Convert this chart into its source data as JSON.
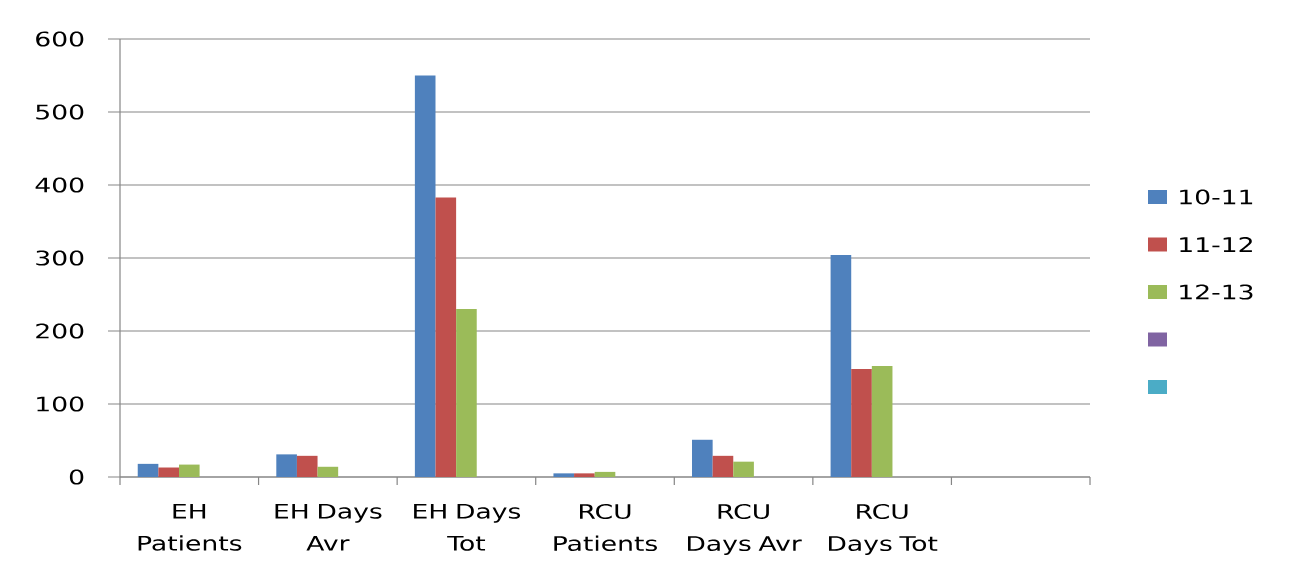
{
  "chart_data": {
    "type": "bar",
    "categories": [
      "EH Patients",
      "EH Days Avr",
      "EH Days Tot",
      "RCU Patients",
      "RCU Days Avr",
      "RCU Days Tot",
      null
    ],
    "series": [
      {
        "name": "10-11",
        "color": "#4f81bd",
        "values": [
          18,
          31,
          550,
          5,
          51,
          304,
          null
        ]
      },
      {
        "name": "11-12",
        "color": "#c0504d",
        "values": [
          13,
          29,
          383,
          5,
          29,
          148,
          null
        ]
      },
      {
        "name": "12-13",
        "color": "#9bbb59",
        "values": [
          17,
          14,
          230,
          7,
          21,
          152,
          null
        ]
      },
      {
        "color": "#8064a2",
        "values": [
          null,
          null,
          null,
          null,
          null,
          null,
          null
        ]
      },
      {
        "color": "#4bacc6",
        "values": [
          null,
          null,
          null,
          null,
          null,
          null,
          null
        ]
      }
    ],
    "ylim": [
      0,
      600
    ],
    "yticks": [
      0,
      100,
      200,
      300,
      400,
      500,
      600
    ],
    "grid": "y",
    "legend": "right"
  }
}
